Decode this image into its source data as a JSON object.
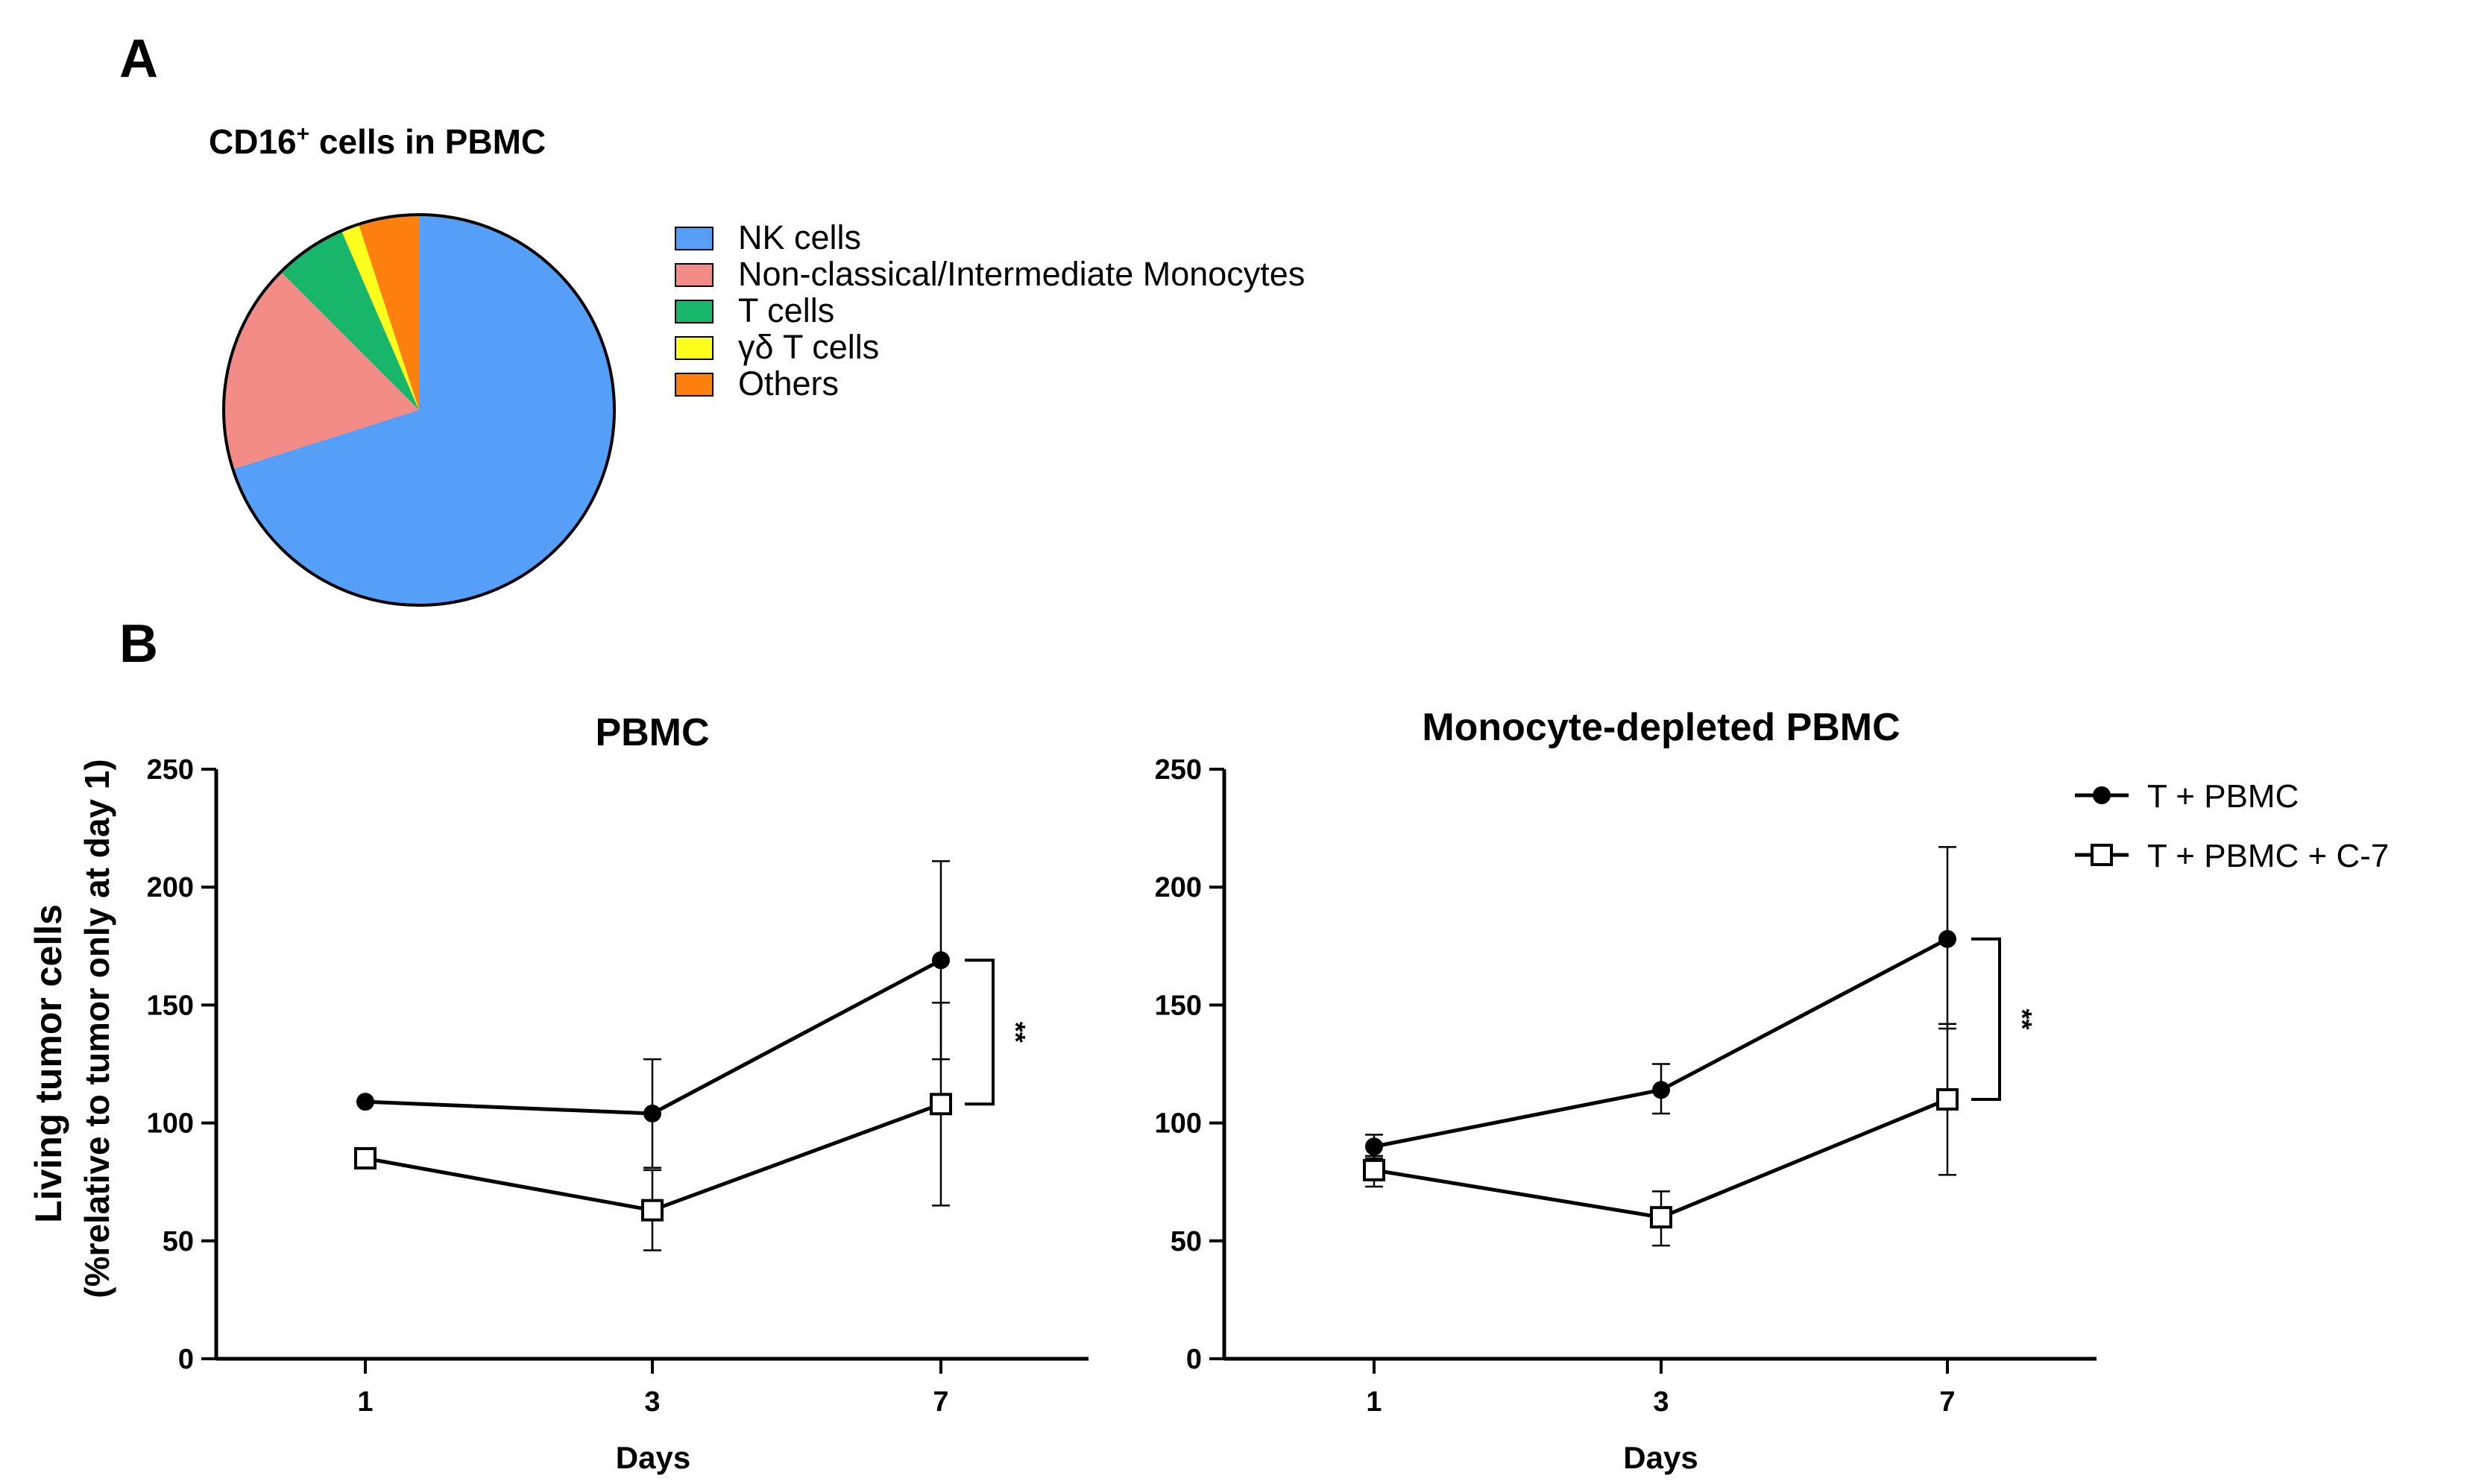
{
  "panels": {
    "a": "A",
    "b": "B"
  },
  "chart_data": [
    {
      "type": "pie",
      "title_main": "CD16",
      "title_sup": "+",
      "title_rest": " cells in PBMC",
      "labels": [
        "NK cells",
        "Non-classical/Intermediate Monocytes",
        "T cells",
        "γδ T cells",
        "Others"
      ],
      "values": [
        70.1,
        17.4,
        6.0,
        1.5,
        5.0
      ],
      "colors": [
        "#559ff8",
        "#f38b87",
        "#17b66a",
        "#ffff1e",
        "#ff7f0f"
      ],
      "legend": "right"
    },
    {
      "type": "line",
      "title": "PBMC",
      "xlabel": "Days",
      "ylabel": "Living tumor cells",
      "ylabel2": "(%relative to tumor only at day 1)",
      "categories": [
        "1",
        "3",
        "7"
      ],
      "ylim": [
        0,
        250
      ],
      "yticks": [
        0,
        50,
        100,
        150,
        200,
        250
      ],
      "series": [
        {
          "name": "T + PBMC",
          "values": [
            109,
            104,
            169
          ],
          "err_hi": [
            0,
            127,
            211
          ],
          "err_lo": [
            0,
            81,
            127
          ],
          "marker": "circle"
        },
        {
          "name": "T + PBMC + C-7",
          "values": [
            85,
            63,
            108
          ],
          "err_hi": [
            0,
            80,
            151
          ],
          "err_lo": [
            0,
            46,
            65
          ],
          "marker": "square"
        }
      ],
      "significance": "**"
    },
    {
      "type": "line",
      "title": "Monocyte-depleted PBMC",
      "xlabel": "Days",
      "categories": [
        "1",
        "3",
        "7"
      ],
      "ylim": [
        0,
        250
      ],
      "yticks": [
        0,
        50,
        100,
        150,
        200,
        250
      ],
      "series": [
        {
          "name": "T + PBMC",
          "values": [
            90,
            114,
            178
          ],
          "err_hi": [
            95,
            125,
            217
          ],
          "err_lo": [
            85,
            104,
            140
          ],
          "marker": "circle"
        },
        {
          "name": "T + PBMC + C-7",
          "values": [
            80,
            60,
            110
          ],
          "err_hi": [
            86,
            71,
            142
          ],
          "err_lo": [
            73,
            48,
            78
          ],
          "marker": "square"
        }
      ],
      "significance": "**"
    }
  ],
  "legend": {
    "items": [
      "T + PBMC",
      "T + PBMC + C-7"
    ]
  }
}
